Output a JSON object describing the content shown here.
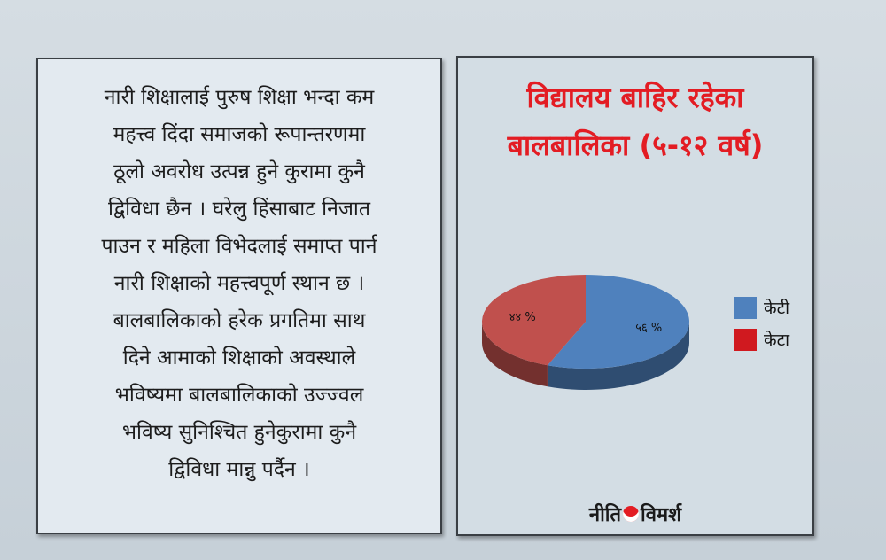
{
  "article": {
    "lines": [
      "नारी शिक्षालाई पुरुष शिक्षा भन्दा कम",
      "महत्त्व दिंदा समाजको रूपान्तरणमा",
      "ठूलो अवरोध उत्पन्न हुने कुरामा कुनै",
      "द्विविधा छैन । घरेलु हिंसाबाट निजात",
      "पाउन र महिला विभेदलाई समाप्त पार्न",
      "नारी शिक्षाको महत्त्वपूर्ण स्थान छ ।",
      "बालबालिकाको हरेक प्रगतिमा साथ",
      "दिने आमाको शिक्षाको अवस्थाले",
      "भविष्यमा बालबालिकाको उज्ज्वल",
      "भविष्य सुनिश्चित हुनेकुरामा कुनै",
      "द्विविधा मान्नु पर्दैन ।"
    ]
  },
  "chart_data": {
    "type": "pie",
    "style": "3d",
    "title_lines": [
      "विद्यालय बाहिर रहेका",
      "बालबालिका (५-१२ वर्ष)"
    ],
    "categories": [
      "केटी",
      "केटा"
    ],
    "values": [
      56,
      44
    ],
    "data_labels": [
      "५६ %",
      "४४ %"
    ],
    "colors": [
      "#4f81bd",
      "#c0504d"
    ],
    "legend_colors": [
      "#4f81bd",
      "#d0191f"
    ],
    "legend_placement": "right"
  },
  "logo": {
    "left": "नीति",
    "right": "विमर्श"
  },
  "colors": {
    "title": "#e31c23"
  }
}
